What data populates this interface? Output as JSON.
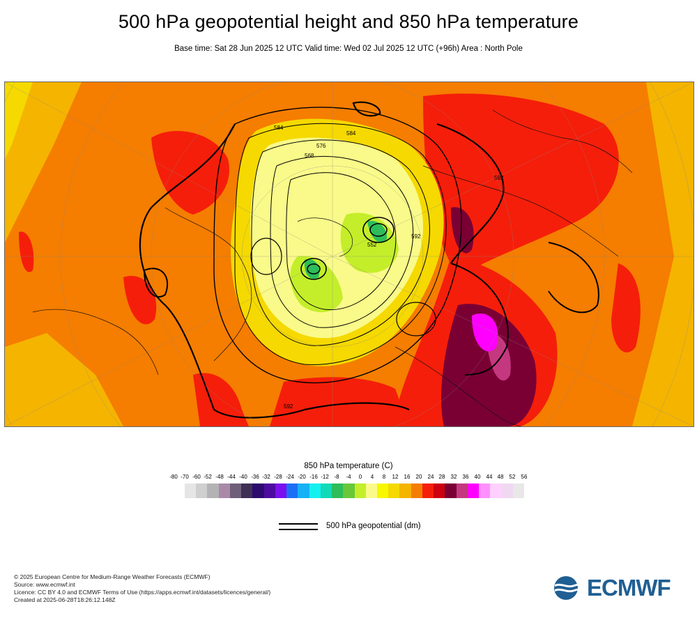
{
  "header": {
    "title": "500 hPa geopotential height and 850 hPa temperature",
    "subtitle": "Base time: Sat 28 Jun 2025 12 UTC Valid time: Wed 02 Jul 2025 12 UTC (+96h) Area : North Pole"
  },
  "map": {
    "contour_labels": [
      "584",
      "592",
      "576",
      "568",
      "584",
      "552",
      "592",
      "592"
    ]
  },
  "legend": {
    "title": "850 hPa temperature (C)",
    "ticks": [
      "-80",
      "-70",
      "-60",
      "-52",
      "-48",
      "-44",
      "-40",
      "-36",
      "-32",
      "-28",
      "-24",
      "-20",
      "-16",
      "-12",
      "-8",
      "-4",
      "0",
      "4",
      "8",
      "12",
      "16",
      "20",
      "24",
      "28",
      "32",
      "36",
      "40",
      "44",
      "48",
      "52",
      "56"
    ],
    "colors": [
      "#e5e5e5",
      "#cfcfcf",
      "#b3b3b3",
      "#a88aa8",
      "#6f5f7a",
      "#3f2f54",
      "#2d0a6e",
      "#4e0ba0",
      "#7a10ee",
      "#1b6ff5",
      "#14b2f5",
      "#14f0f0",
      "#12d9b8",
      "#2dbd5a",
      "#68c83a",
      "#c4ee2a",
      "#fafa8a",
      "#f7f700",
      "#f5d900",
      "#f5b400",
      "#f57d00",
      "#f51e0a",
      "#cc0010",
      "#7a0034",
      "#c4387f",
      "#ff00ff",
      "#ff90ff",
      "#ffd0ff",
      "#f0d8f0",
      "#e8e8e8"
    ],
    "line_label": "500 hPa geopotential (dm)"
  },
  "credits": {
    "copyright": "© 2025 European Centre for Medium-Range Weather Forecasts (ECMWF)",
    "source": "Source: www.ecmwf.int",
    "licence": "Licence: CC BY 4.0 and ECMWF Terms of Use (https://apps.ecmwf.int/datasets/licences/general/)",
    "created": "Created at 2025-06-28T18:26:12.148Z"
  },
  "logo": {
    "text": "ECMWF",
    "color": "#1f5f93"
  }
}
